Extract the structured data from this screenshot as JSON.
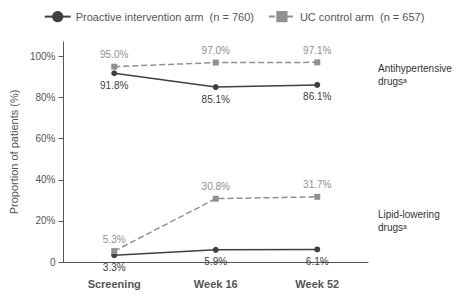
{
  "chart_data": {
    "type": "line",
    "categories": [
      "Screening",
      "Week 16",
      "Week 52"
    ],
    "series": [
      {
        "name": "Proactive intervention arm  (n = 760)",
        "color": "#404040",
        "marker": "circle",
        "line_style": "solid",
        "values": [
          91.8,
          85.1,
          86.1
        ],
        "value_labels": [
          "91.8%",
          "85.1%",
          "86.1%"
        ]
      },
      {
        "name": "UC control arm  (n = 657)",
        "color": "#909090",
        "marker": "square",
        "line_style": "dashed",
        "values": [
          95.0,
          97.0,
          97.1
        ],
        "value_labels": [
          "95.0%",
          "97.0%",
          "97.1%"
        ]
      },
      {
        "name": "Proactive intervention arm  (n = 760)",
        "color": "#404040",
        "marker": "circle",
        "line_style": "solid",
        "values": [
          3.3,
          5.9,
          6.1
        ],
        "value_labels": [
          "3.3%",
          "5.9%",
          "6.1%"
        ]
      },
      {
        "name": "UC control arm  (n = 657)",
        "color": "#909090",
        "marker": "square",
        "line_style": "dashed",
        "values": [
          5.3,
          30.8,
          31.7
        ],
        "value_labels": [
          "5.3%",
          "30.8%",
          "31.7%"
        ]
      }
    ],
    "ylabel": "Proportion of patients (%)",
    "ylim": [
      0,
      107
    ],
    "yticks": [
      0,
      {
        "value": 20,
        "label": "20%"
      },
      {
        "value": 40,
        "label": "40%"
      },
      {
        "value": 60,
        "label": "60%"
      },
      {
        "value": 80,
        "label": "80%"
      },
      {
        "value": 100,
        "label": "100%"
      }
    ],
    "annotations": [
      {
        "text": "Antihypertensive\ndrugsᵃ",
        "y": 91.0
      },
      {
        "text": "Lipid-lowering\ndrugsᵃ",
        "y": 20.0
      }
    ],
    "data_labels": true,
    "grid": false,
    "legend": "top"
  }
}
